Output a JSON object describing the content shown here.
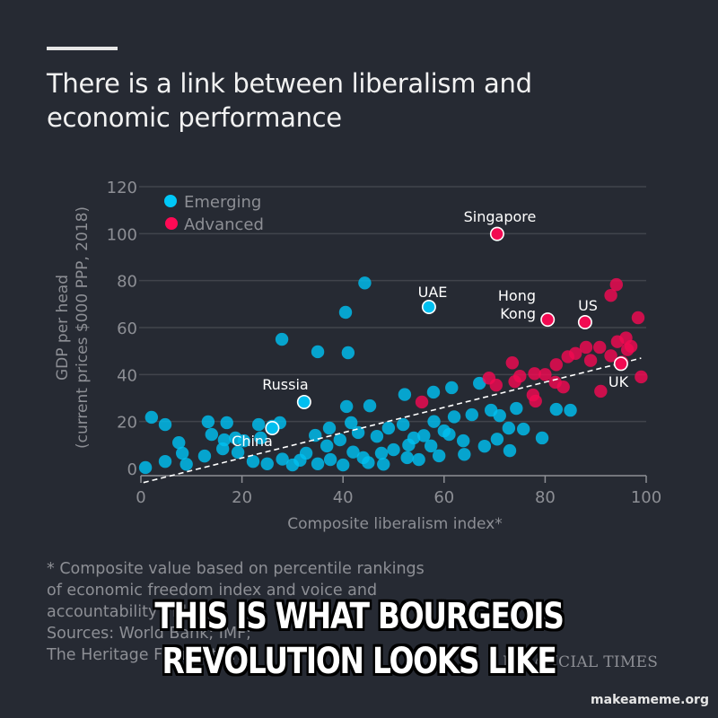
{
  "header": {
    "title": "There is a link between liberalism and economic performance"
  },
  "colors": {
    "background": "#262a33",
    "emerging": "#00c0ee",
    "advanced": "#f0094f",
    "grid": "#4a4d55",
    "axis_text": "#8d8f95",
    "label_text": "#ffffff"
  },
  "legend": {
    "items": [
      {
        "label": "Emerging",
        "color": "#00c8f8"
      },
      {
        "label": "Advanced",
        "color": "#ff0a55"
      }
    ]
  },
  "axes": {
    "ylabel_line1": "GDP per head",
    "ylabel_line2": "(current prices $000 PPP, 2018)",
    "xlabel": "Composite liberalism index*",
    "yticks": [
      "0",
      "20",
      "40",
      "60",
      "80",
      "100",
      "120"
    ],
    "xticks": [
      "0",
      "20",
      "40",
      "60",
      "80",
      "100"
    ]
  },
  "annotations": {
    "singapore": "Singapore",
    "uae": "UAE",
    "hong_kong_1": "Hong",
    "hong_kong_2": "Kong",
    "us": "US",
    "russia": "Russia",
    "china": "China",
    "uk": "UK"
  },
  "footnote": {
    "line1": "* Composite value based on percentile rankings",
    "line2": "of economic freedom index and voice and",
    "line3": "accountability index",
    "line4": "Sources: World Bank; IMF;",
    "line5": "The Heritage Foundation"
  },
  "brand": "FINANCIAL TIMES",
  "meme": {
    "line1": "THIS IS WHAT BOURGEOIS",
    "line2": "REVOLUTION LOOKS LIKE"
  },
  "watermark": "makeameme.org",
  "chart_data": {
    "type": "scatter",
    "title": "There is a link between liberalism and economic performance",
    "xlabel": "Composite liberalism index*",
    "ylabel": "GDP per head (current prices $000 PPP, 2018)",
    "xlim": [
      0,
      100
    ],
    "ylim": [
      0,
      120
    ],
    "grid": true,
    "legend_position": "top-left",
    "trendline": {
      "style": "dashed",
      "x": [
        0.5,
        99
      ],
      "y": [
        -6,
        47
      ]
    },
    "series": [
      {
        "name": "Emerging",
        "color": "#00c8f8",
        "points": [
          [
            44.3,
            79
          ],
          [
            40.5,
            66.5
          ],
          [
            27.9,
            55
          ],
          [
            35,
            49.7
          ],
          [
            41,
            49.3
          ],
          [
            57,
            68.8
          ],
          [
            32.3,
            28.3
          ],
          [
            40.7,
            26.4
          ],
          [
            45.3,
            26.7
          ],
          [
            2.1,
            21.8
          ],
          [
            4.8,
            18.7
          ],
          [
            13.3,
            19.9
          ],
          [
            14,
            14.5
          ],
          [
            7.5,
            11
          ],
          [
            17,
            19.5
          ],
          [
            23.3,
            18.7
          ],
          [
            26,
            17.2
          ],
          [
            27.5,
            19.5
          ],
          [
            0.9,
            0.4
          ],
          [
            4.8,
            3
          ],
          [
            8.2,
            6.5
          ],
          [
            9,
            1.8
          ],
          [
            12.6,
            5.3
          ],
          [
            16.2,
            8.4
          ],
          [
            19.2,
            6.9
          ],
          [
            20.4,
            11.8
          ],
          [
            16.5,
            12.2
          ],
          [
            23.7,
            13
          ],
          [
            18.7,
            13
          ],
          [
            22.2,
            3
          ],
          [
            25,
            2
          ],
          [
            28,
            4
          ],
          [
            30,
            1.5
          ],
          [
            31.5,
            3.5
          ],
          [
            34.5,
            14.1
          ],
          [
            37.3,
            17.2
          ],
          [
            41.6,
            19.5
          ],
          [
            43,
            15.3
          ],
          [
            39.4,
            12.2
          ],
          [
            46.7,
            13.7
          ],
          [
            49,
            17.2
          ],
          [
            51.9,
            18.7
          ],
          [
            54,
            13
          ],
          [
            56,
            14
          ],
          [
            57.4,
            9.6
          ],
          [
            32.7,
            6.5
          ],
          [
            36.8,
            9.6
          ],
          [
            37.5,
            3.8
          ],
          [
            44,
            4.6
          ],
          [
            47.6,
            6.5
          ],
          [
            52.7,
            4.6
          ],
          [
            59,
            5.4
          ],
          [
            35,
            2
          ],
          [
            40,
            1.5
          ],
          [
            42,
            7
          ],
          [
            45,
            2.5
          ],
          [
            48,
            1.8
          ],
          [
            50,
            8
          ],
          [
            53,
            10
          ],
          [
            55,
            3.8
          ],
          [
            52.2,
            31.5
          ],
          [
            57.9,
            32.5
          ],
          [
            61.5,
            34.4
          ],
          [
            67,
            36.3
          ],
          [
            74.3,
            25.6
          ],
          [
            82.2,
            25.2
          ],
          [
            85,
            24.8
          ],
          [
            69.3,
            24.8
          ],
          [
            71,
            22.5
          ],
          [
            65.5,
            22.9
          ],
          [
            72.8,
            17.2
          ],
          [
            75.7,
            16.8
          ],
          [
            79.4,
            13
          ],
          [
            63.8,
            11.8
          ],
          [
            73,
            7.6
          ],
          [
            68,
            9.5
          ],
          [
            61,
            14.5
          ],
          [
            64,
            6
          ],
          [
            60,
            16
          ],
          [
            70.5,
            12.5
          ],
          [
            58,
            20
          ],
          [
            62,
            22
          ],
          [
            26,
            18
          ]
        ]
      },
      {
        "name": "Advanced",
        "color": "#ff0a55",
        "points": [
          [
            70.5,
            99.9
          ],
          [
            80.5,
            63.4
          ],
          [
            87.9,
            62.3
          ],
          [
            94.1,
            78.3
          ],
          [
            93,
            73.7
          ],
          [
            98.4,
            64.2
          ],
          [
            88.1,
            51.6
          ],
          [
            90.8,
            51.6
          ],
          [
            94.3,
            54
          ],
          [
            96,
            55.6
          ],
          [
            96.3,
            50.6
          ],
          [
            95.2,
            45.3
          ],
          [
            95,
            44.6
          ],
          [
            99,
            39
          ],
          [
            91,
            32.9
          ],
          [
            73.5,
            45
          ],
          [
            68.9,
            38.5
          ],
          [
            70.3,
            35.5
          ],
          [
            74,
            37
          ],
          [
            75,
            39.3
          ],
          [
            77.9,
            40.4
          ],
          [
            80,
            40
          ],
          [
            82.2,
            44.2
          ],
          [
            84.5,
            47.6
          ],
          [
            82,
            36.7
          ],
          [
            83.6,
            34.7
          ],
          [
            77.6,
            31.3
          ],
          [
            78.1,
            28.7
          ],
          [
            55.6,
            28.3
          ],
          [
            86,
            49
          ],
          [
            93,
            48
          ],
          [
            97,
            52
          ],
          [
            89,
            46
          ]
        ]
      }
    ],
    "labeled_points": [
      {
        "label": "Singapore",
        "x": 70.5,
        "y": 99.9,
        "series": "Advanced"
      },
      {
        "label": "UAE",
        "x": 57,
        "y": 68.8,
        "series": "Emerging"
      },
      {
        "label": "Hong Kong",
        "x": 80.5,
        "y": 63.4,
        "series": "Advanced"
      },
      {
        "label": "US",
        "x": 87.9,
        "y": 62.3,
        "series": "Advanced"
      },
      {
        "label": "Russia",
        "x": 32.3,
        "y": 28.3,
        "series": "Emerging"
      },
      {
        "label": "China",
        "x": 26,
        "y": 17.2,
        "series": "Emerging"
      },
      {
        "label": "UK",
        "x": 95,
        "y": 44.6,
        "series": "Advanced"
      }
    ]
  }
}
